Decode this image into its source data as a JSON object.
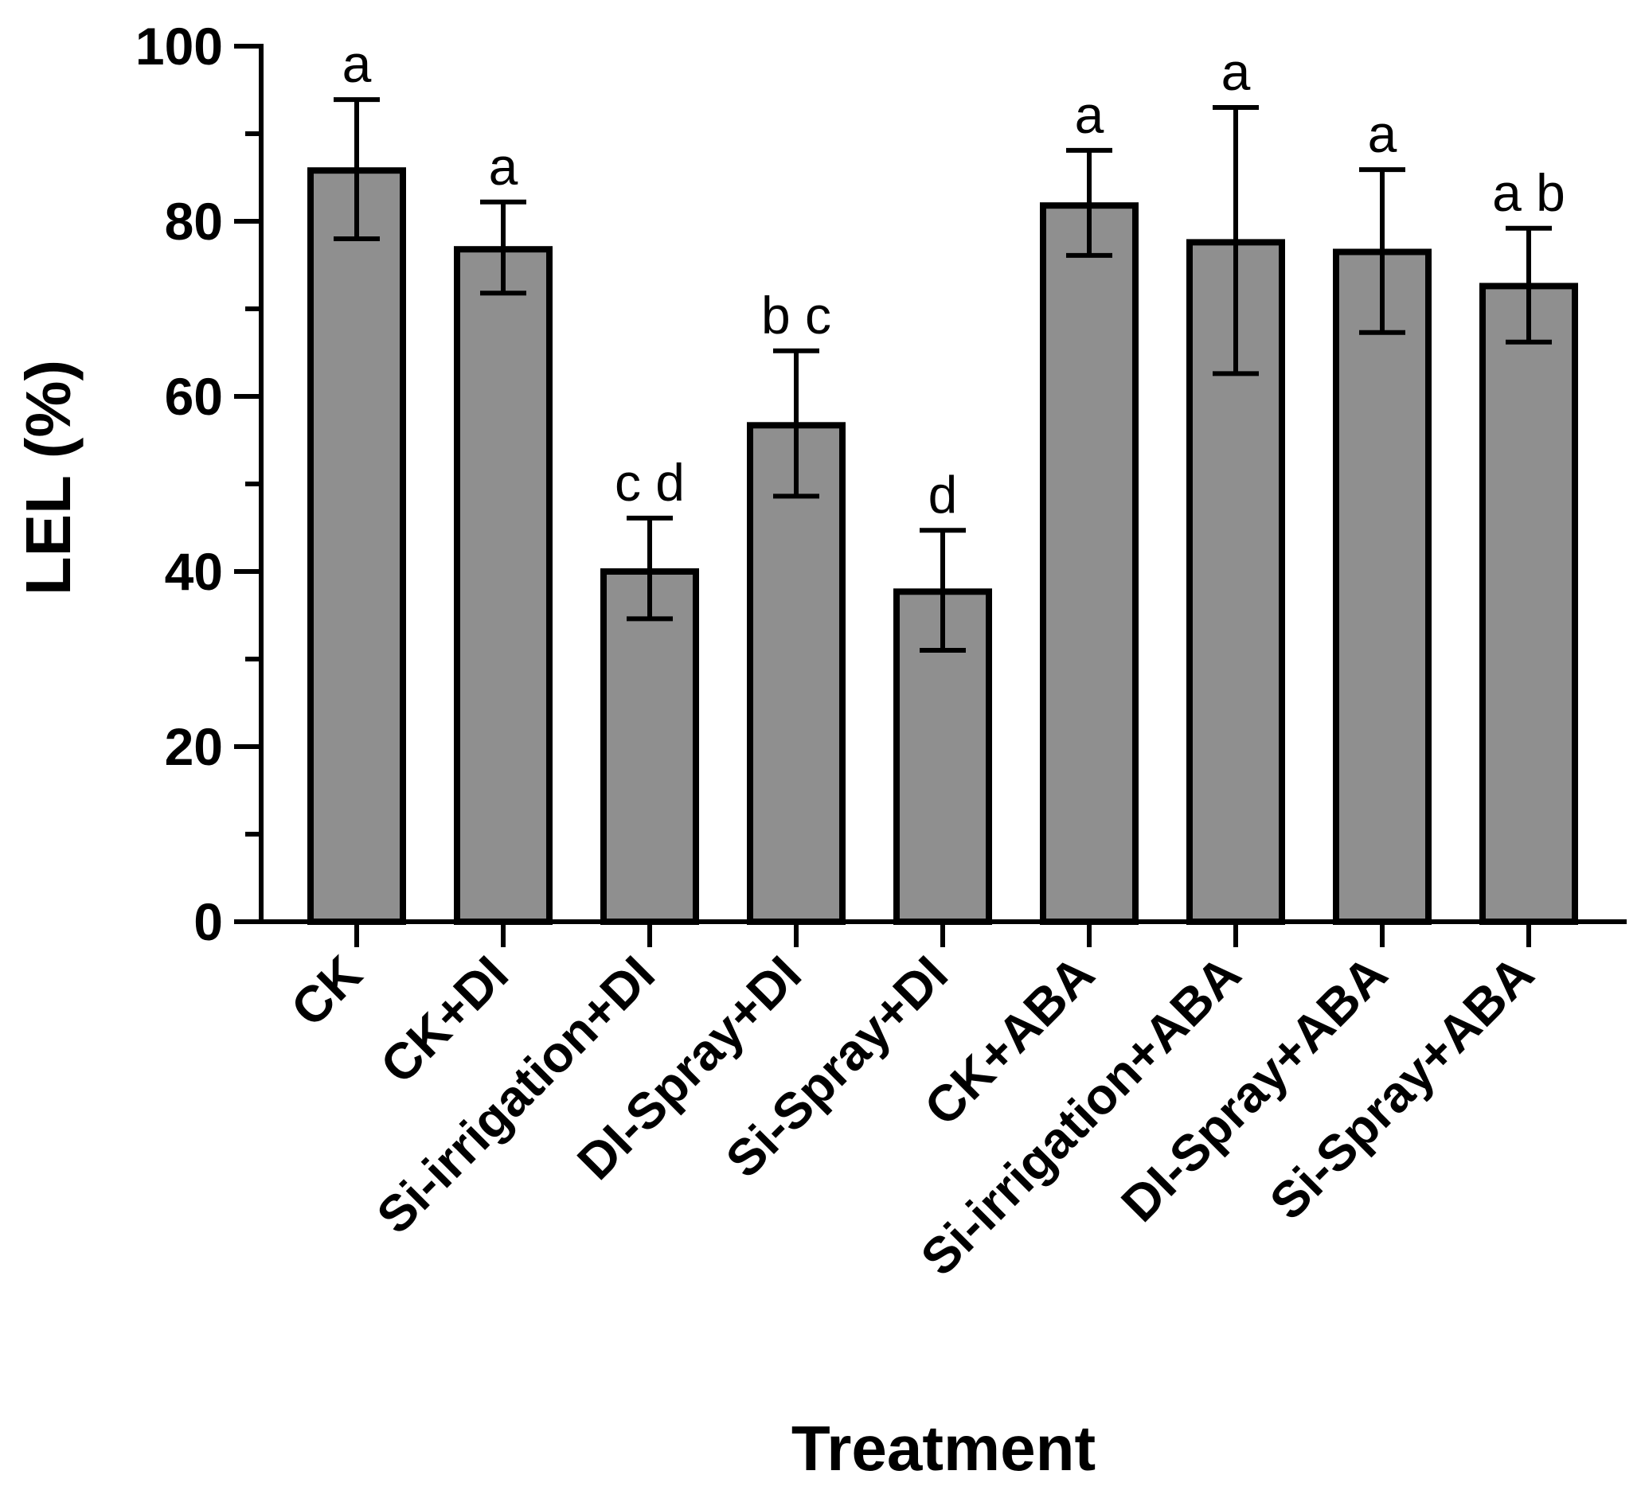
{
  "chart_data": {
    "type": "bar",
    "title": "",
    "xlabel": "Treatment",
    "ylabel": "LEL (%)",
    "ylim": [
      0,
      100
    ],
    "yticks": [
      0,
      20,
      40,
      60,
      80,
      100
    ],
    "grid": false,
    "bar_color": "#8f8f8f",
    "categories": [
      "CK",
      "CK+DI",
      "Si-irrigation+DI",
      "DI-Spray+DI",
      "Si-Spray+DI",
      "CK+ABA",
      "Si-irrigation+ABA",
      "DI-Spray+ABA",
      "Si-Spray+ABA"
    ],
    "values": [
      85.8,
      76.8,
      40.0,
      56.7,
      37.7,
      81.8,
      77.6,
      76.5,
      72.6
    ],
    "error_low": [
      78.0,
      71.8,
      34.6,
      48.6,
      31.0,
      76.1,
      62.6,
      67.3,
      66.2
    ],
    "error_high": [
      93.9,
      82.2,
      46.1,
      65.2,
      44.7,
      88.1,
      93.0,
      85.9,
      79.2
    ],
    "significance": [
      "a",
      "a",
      "c d",
      "b c",
      "d",
      "a",
      "a",
      "a",
      "a b"
    ]
  }
}
